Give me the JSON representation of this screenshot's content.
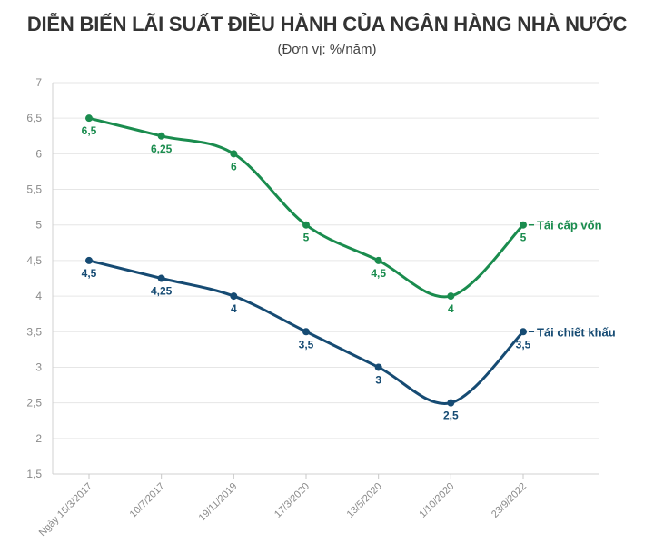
{
  "title": "DIỄN BIẾN LÃI SUẤT ĐIỀU HÀNH CỦA NGÂN HÀNG NHÀ NƯỚC",
  "subtitle": "(Đơn vị: %/năm)",
  "chart_data": {
    "type": "line",
    "title": "DIỄN BIẾN LÃI SUẤT ĐIỀU HÀNH CỦA NGÂN HÀNG NHÀ NƯỚC",
    "subtitle": "(Đơn vị: %/năm)",
    "categories": [
      "Ngày 15/3/2017",
      "10/7/2017",
      "19/11/2019",
      "17/3/2020",
      "13/5/2020",
      "1/10/2020",
      "23/9/2022"
    ],
    "ylim": [
      1.5,
      7
    ],
    "yticks": [
      "1,5",
      "2",
      "2,5",
      "3",
      "3,5",
      "4",
      "4,5",
      "5",
      "5,5",
      "6",
      "6,5",
      "7"
    ],
    "grid": "y",
    "legend": "end-of-line labels",
    "series": [
      {
        "name": "Tái cấp vốn",
        "color": "#1a8c4e",
        "values": [
          6.5,
          6.25,
          6,
          5,
          4.5,
          4,
          5
        ],
        "labels": [
          "6,5",
          "6,25",
          "6",
          "5",
          "4,5",
          "4",
          "5"
        ]
      },
      {
        "name": "Tái chiết khấu",
        "color": "#164b73",
        "values": [
          4.5,
          4.25,
          4,
          3.5,
          3,
          2.5,
          3.5
        ],
        "labels": [
          "4,5",
          "4,25",
          "4",
          "3,5",
          "3",
          "2,5",
          "3,5"
        ]
      }
    ]
  }
}
